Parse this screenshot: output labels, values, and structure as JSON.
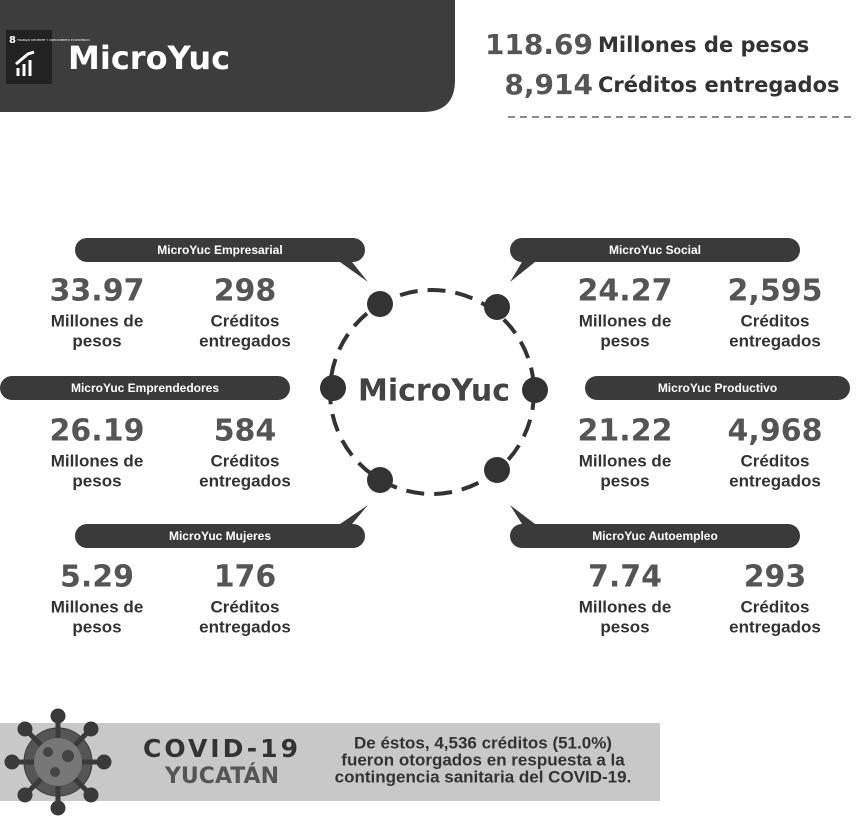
{
  "header": {
    "sdg_number": "8",
    "sdg_text": "TRABAJO DECENTE Y CRECIMIENTO ECONÓMICO",
    "title": "MicroYuc"
  },
  "totals": {
    "amount": "118.69",
    "amount_label": "Millones de pesos",
    "credits": "8,914",
    "credits_label": "Créditos entregados"
  },
  "center_label": "MicroYuc",
  "programs": [
    {
      "name": "MicroYuc Empresarial",
      "amount": "33.97",
      "amount_label_1": "Millones de",
      "amount_label_2": "pesos",
      "credits": "298",
      "credits_label_1": "Créditos",
      "credits_label_2": "entregados"
    },
    {
      "name": "MicroYuc Emprendedores",
      "amount": "26.19",
      "amount_label_1": "Millones de",
      "amount_label_2": "pesos",
      "credits": "584",
      "credits_label_1": "Créditos",
      "credits_label_2": "entregados"
    },
    {
      "name": "MicroYuc Mujeres",
      "amount": "5.29",
      "amount_label_1": "Millones de",
      "amount_label_2": "pesos",
      "credits": "176",
      "credits_label_1": "Créditos",
      "credits_label_2": "entregados"
    },
    {
      "name": "MicroYuc Social",
      "amount": "24.27",
      "amount_label_1": "Millones de",
      "amount_label_2": "pesos",
      "credits": "2,595",
      "credits_label_1": "Créditos",
      "credits_label_2": "entregados"
    },
    {
      "name": "MicroYuc Productivo",
      "amount": "21.22",
      "amount_label_1": "Millones de",
      "amount_label_2": "pesos",
      "credits": "4,968",
      "credits_label_1": "Créditos",
      "credits_label_2": "entregados"
    },
    {
      "name": "MicroYuc Autoempleo",
      "amount": "7.74",
      "amount_label_1": "Millones de",
      "amount_label_2": "pesos",
      "credits": "293",
      "credits_label_1": "Créditos",
      "credits_label_2": "entregados"
    }
  ],
  "covid": {
    "title": "COVID-19",
    "subtitle": "YUCATÁN",
    "text_1": "De éstos, 4,536 créditos (51.0%)",
    "text_2": "fueron otorgados en respuesta a la",
    "text_3": "contingencia sanitaria del COVID-19."
  }
}
